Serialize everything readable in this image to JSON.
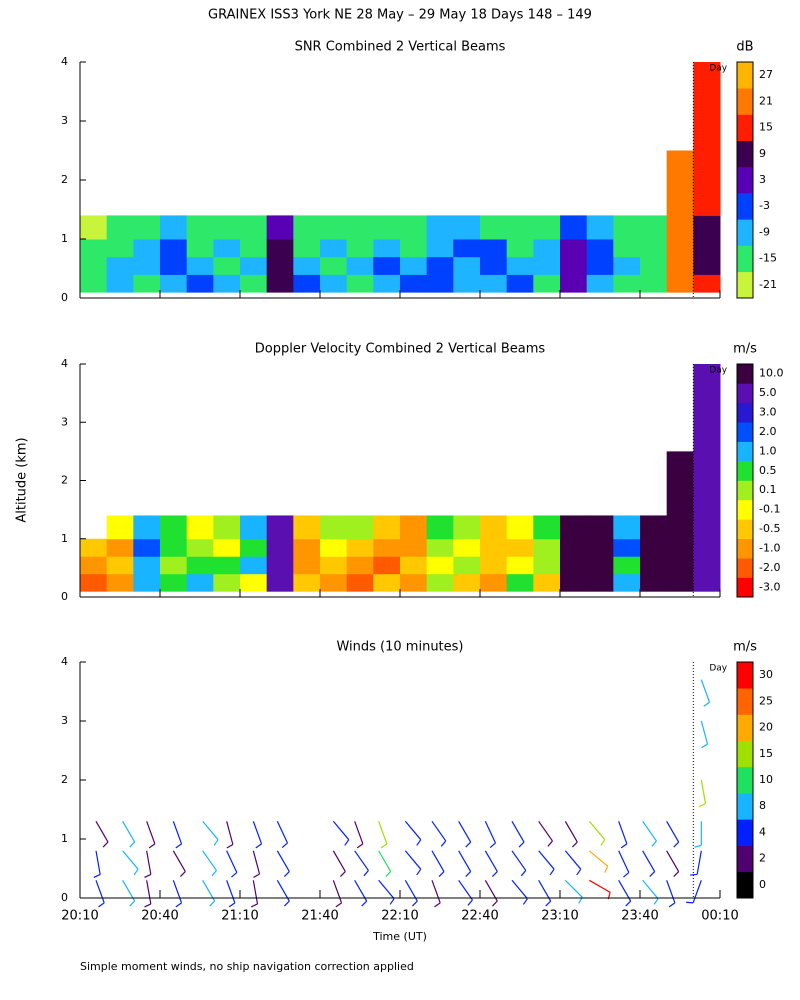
{
  "title": "GRAINEX ISS3 York NE  28 May – 29 May 18 Days 148 – 149",
  "y_label": "Altitude (km)",
  "note": "Simple moment winds, no ship navigation correction applied",
  "chart_data": [
    {
      "type": "heatmap",
      "title": "SNR Combined 2 Vertical Beams",
      "xlim": [
        1210,
        1450
      ],
      "xticks": [
        1210,
        1240,
        1270,
        1300,
        1330,
        1360,
        1390,
        1420,
        1450
      ],
      "ylim": [
        0,
        4
      ],
      "yticks": [
        0,
        1,
        2,
        3,
        4
      ],
      "day_marker": {
        "x": 1440,
        "label": "Day"
      },
      "time_edges": [
        1210,
        1220,
        1230,
        1240,
        1250,
        1260,
        1270,
        1280,
        1290,
        1300,
        1310,
        1320,
        1330,
        1340,
        1350,
        1360,
        1370,
        1380,
        1390,
        1400,
        1410,
        1420,
        1430,
        1440,
        1450
      ],
      "alt_edges": [
        0.1,
        0.4,
        0.7,
        1.0,
        1.4,
        2.5,
        4.0
      ],
      "values": [
        [
          -15,
          -9,
          -15,
          -9,
          -3,
          -9,
          -15,
          9,
          -3,
          -9,
          -15,
          -9,
          -3,
          -3,
          -9,
          -9,
          -3,
          -15,
          3,
          -9,
          -15,
          -15,
          21,
          15
        ],
        [
          -15,
          -9,
          -9,
          -3,
          -9,
          -15,
          -9,
          9,
          -9,
          -15,
          -9,
          -3,
          -9,
          -3,
          -9,
          -3,
          -9,
          -9,
          3,
          -3,
          -9,
          -15,
          21,
          9
        ],
        [
          -15,
          -15,
          -9,
          -3,
          -15,
          -9,
          -15,
          9,
          -15,
          -9,
          -15,
          -9,
          -15,
          -9,
          -3,
          -3,
          -15,
          -9,
          3,
          -3,
          -15,
          -15,
          21,
          9
        ],
        [
          -21,
          -15,
          -15,
          -9,
          -15,
          -15,
          -15,
          3,
          -15,
          -15,
          -15,
          -15,
          -15,
          -9,
          -9,
          -15,
          -15,
          -15,
          -3,
          -9,
          -15,
          -15,
          21,
          9
        ],
        [
          null,
          null,
          null,
          null,
          null,
          null,
          null,
          null,
          null,
          null,
          null,
          null,
          null,
          null,
          null,
          null,
          null,
          null,
          null,
          null,
          null,
          null,
          21,
          15
        ],
        [
          null,
          null,
          null,
          null,
          null,
          null,
          null,
          null,
          null,
          null,
          null,
          null,
          null,
          null,
          null,
          null,
          null,
          null,
          null,
          null,
          null,
          null,
          null,
          15
        ]
      ],
      "colorbar": {
        "unit": "dB",
        "levels": [
          -21,
          -15,
          -9,
          -3,
          3,
          9,
          15,
          21,
          27
        ],
        "colors": [
          "#c8f53c",
          "#2ee86a",
          "#1eb4ff",
          "#0040ff",
          "#5a00b4",
          "#3c0050",
          "#ff1e00",
          "#ff7800",
          "#ffb400"
        ]
      }
    },
    {
      "type": "heatmap",
      "title": "Doppler Velocity Combined 2 Vertical Beams",
      "xlim": [
        1210,
        1450
      ],
      "xticks": [
        1210,
        1240,
        1270,
        1300,
        1330,
        1360,
        1390,
        1420,
        1450
      ],
      "ylim": [
        0,
        4
      ],
      "yticks": [
        0,
        1,
        2,
        3,
        4
      ],
      "day_marker": {
        "x": 1440,
        "label": "Day"
      },
      "time_edges": [
        1210,
        1220,
        1230,
        1240,
        1250,
        1260,
        1270,
        1280,
        1290,
        1300,
        1310,
        1320,
        1330,
        1340,
        1350,
        1360,
        1370,
        1380,
        1390,
        1400,
        1410,
        1420,
        1430,
        1440,
        1450
      ],
      "alt_edges": [
        0.1,
        0.4,
        0.7,
        1.0,
        1.4,
        2.5,
        4.0
      ],
      "values": [
        [
          -2,
          -1,
          1,
          0.5,
          1,
          0.1,
          -0.1,
          5,
          -0.5,
          -1,
          -2,
          -0.5,
          -1,
          0.1,
          -0.5,
          -1,
          0.5,
          -0.5,
          10,
          10,
          1,
          10,
          10,
          5
        ],
        [
          -1,
          -0.5,
          1,
          0.1,
          0.5,
          0.5,
          1,
          5,
          -1,
          -0.5,
          -1,
          -2,
          -0.5,
          -0.1,
          0.1,
          -0.5,
          -0.1,
          0.1,
          10,
          10,
          0.5,
          10,
          10,
          5
        ],
        [
          -0.5,
          -1,
          2,
          0.5,
          0.1,
          -0.1,
          0.5,
          5,
          -1,
          -0.1,
          -0.5,
          -1,
          -1,
          0.1,
          -0.1,
          -0.5,
          -0.5,
          0.1,
          10,
          10,
          2,
          10,
          10,
          5
        ],
        [
          null,
          -0.1,
          1,
          0.5,
          -0.1,
          0.1,
          1,
          5,
          -0.5,
          0.1,
          0.1,
          -0.5,
          -1,
          0.5,
          0.1,
          -0.5,
          -0.1,
          0.5,
          10,
          10,
          1,
          10,
          10,
          5
        ],
        [
          null,
          null,
          null,
          null,
          null,
          null,
          null,
          null,
          null,
          null,
          null,
          null,
          null,
          null,
          null,
          null,
          null,
          null,
          null,
          null,
          null,
          null,
          10,
          5
        ],
        [
          null,
          null,
          null,
          null,
          null,
          null,
          null,
          null,
          null,
          null,
          null,
          null,
          null,
          null,
          null,
          null,
          null,
          null,
          null,
          null,
          null,
          null,
          null,
          5
        ]
      ],
      "colorbar": {
        "unit": "m/s",
        "levels": [
          {
            "value": -3,
            "label": "-3.0"
          },
          {
            "value": -2,
            "label": "-2.0"
          },
          {
            "value": -1,
            "label": "-1.0"
          },
          -0.5,
          -0.1,
          0.1,
          0.5,
          {
            "value": 1,
            "label": "1.0"
          },
          {
            "value": 2,
            "label": "2.0"
          },
          {
            "value": 3,
            "label": "3.0"
          },
          {
            "value": 5,
            "label": "5.0"
          },
          {
            "value": 10,
            "label": "10.0"
          }
        ],
        "colors": [
          "#ff0000",
          "#ff5a00",
          "#ff9600",
          "#ffc800",
          "#ffff00",
          "#a0f020",
          "#20e030",
          "#18b4ff",
          "#0050ff",
          "#2818d0",
          "#5a10b0",
          "#3a0040"
        ]
      }
    },
    {
      "type": "wind",
      "title": "Winds (10 minutes)",
      "x_label": "Time (UT)",
      "xlim": [
        1210,
        1450
      ],
      "xticks": [
        {
          "value": 1210,
          "label": "20:10"
        },
        {
          "value": 1240,
          "label": "20:40"
        },
        {
          "value": 1270,
          "label": "21:10"
        },
        {
          "value": 1300,
          "label": "21:40"
        },
        {
          "value": 1330,
          "label": "22:10"
        },
        {
          "value": 1360,
          "label": "22:40"
        },
        {
          "value": 1390,
          "label": "23:10"
        },
        {
          "value": 1420,
          "label": "23:40"
        },
        {
          "value": 1450,
          "label": "00:10"
        }
      ],
      "ylim": [
        0,
        4
      ],
      "yticks": [
        0,
        1,
        2,
        3,
        4
      ],
      "day_marker": {
        "x": 1440,
        "label": "Day"
      },
      "profiles": [
        {
          "time": 1216,
          "altitude": [
            0.3,
            0.8,
            1.3
          ],
          "speed": [
            4,
            4,
            2
          ],
          "direction": [
            160,
            170,
            150
          ]
        },
        {
          "time": 1226,
          "altitude": [
            0.3,
            0.8,
            1.3
          ],
          "speed": [
            8,
            8,
            8
          ],
          "direction": [
            150,
            140,
            150
          ]
        },
        {
          "time": 1235,
          "altitude": [
            0.3,
            0.8,
            1.3
          ],
          "speed": [
            2,
            2,
            2
          ],
          "direction": [
            170,
            170,
            160
          ]
        },
        {
          "time": 1245,
          "altitude": [
            0.3,
            0.8,
            1.3
          ],
          "speed": [
            4,
            2,
            4
          ],
          "direction": [
            160,
            150,
            160
          ]
        },
        {
          "time": 1256,
          "altitude": [
            0.3,
            0.8,
            1.3
          ],
          "speed": [
            8,
            8,
            8
          ],
          "direction": [
            150,
            145,
            140
          ]
        },
        {
          "time": 1265,
          "altitude": [
            0.3,
            0.8,
            1.3
          ],
          "speed": [
            4,
            4,
            2
          ],
          "direction": [
            160,
            155,
            165
          ]
        },
        {
          "time": 1275,
          "altitude": [
            0.3,
            0.8,
            1.3
          ],
          "speed": [
            2,
            2,
            4
          ],
          "direction": [
            170,
            165,
            160
          ]
        },
        {
          "time": 1284,
          "altitude": [
            0.3,
            0.8,
            1.3
          ],
          "speed": [
            4,
            4,
            4
          ],
          "direction": [
            150,
            150,
            155
          ]
        },
        {
          "time": 1305,
          "altitude": [
            0.3,
            0.8,
            1.3
          ],
          "speed": [
            2,
            2,
            4
          ],
          "direction": [
            160,
            150,
            140
          ]
        },
        {
          "time": 1313,
          "altitude": [
            0.3,
            0.8,
            1.3
          ],
          "speed": [
            4,
            4,
            2
          ],
          "direction": [
            150,
            145,
            160
          ]
        },
        {
          "time": 1322,
          "altitude": [
            0.3,
            0.8,
            1.3
          ],
          "speed": [
            4,
            10,
            15
          ],
          "direction": [
            140,
            150,
            160
          ]
        },
        {
          "time": 1332,
          "altitude": [
            0.3,
            0.8,
            1.3
          ],
          "speed": [
            4,
            4,
            4
          ],
          "direction": [
            150,
            140,
            140
          ]
        },
        {
          "time": 1342,
          "altitude": [
            0.3,
            0.8,
            1.3
          ],
          "speed": [
            2,
            4,
            4
          ],
          "direction": [
            160,
            150,
            145
          ]
        },
        {
          "time": 1352,
          "altitude": [
            0.3,
            0.8,
            1.3
          ],
          "speed": [
            4,
            4,
            4
          ],
          "direction": [
            145,
            150,
            150
          ]
        },
        {
          "time": 1362,
          "altitude": [
            0.3,
            0.8,
            1.3
          ],
          "speed": [
            2,
            4,
            4
          ],
          "direction": [
            150,
            150,
            155
          ]
        },
        {
          "time": 1372,
          "altitude": [
            0.3,
            0.8,
            1.3
          ],
          "speed": [
            4,
            4,
            4
          ],
          "direction": [
            140,
            145,
            150
          ]
        },
        {
          "time": 1382,
          "altitude": [
            0.3,
            0.8,
            1.3
          ],
          "speed": [
            4,
            4,
            2
          ],
          "direction": [
            150,
            140,
            145
          ]
        },
        {
          "time": 1392,
          "altitude": [
            0.3,
            0.8,
            1.3
          ],
          "speed": [
            8,
            4,
            2
          ],
          "direction": [
            135,
            140,
            150
          ]
        },
        {
          "time": 1401,
          "altitude": [
            0.3,
            0.8,
            1.3
          ],
          "speed": [
            30,
            20,
            15
          ],
          "direction": [
            120,
            130,
            140
          ]
        },
        {
          "time": 1412,
          "altitude": [
            0.3,
            0.8,
            1.3
          ],
          "speed": [
            4,
            4,
            4
          ],
          "direction": [
            150,
            155,
            160
          ]
        },
        {
          "time": 1421,
          "altitude": [
            0.3,
            0.8,
            1.3
          ],
          "speed": [
            8,
            4,
            8
          ],
          "direction": [
            140,
            150,
            145
          ]
        },
        {
          "time": 1430,
          "altitude": [
            0.3,
            0.8,
            1.3
          ],
          "speed": [
            4,
            2,
            4
          ],
          "direction": [
            160,
            150,
            150
          ]
        },
        {
          "time": 1443,
          "altitude": [
            0.3,
            0.8,
            1.3,
            2.0,
            3.0,
            3.7
          ],
          "speed": [
            4,
            4,
            8,
            15,
            8,
            8
          ],
          "direction": [
            200,
            190,
            180,
            170,
            165,
            160
          ]
        }
      ],
      "colorbar": {
        "unit": "m/s",
        "levels": [
          0,
          2,
          4,
          8,
          10,
          15,
          20,
          25,
          30
        ],
        "colors": [
          "#000000",
          "#500070",
          "#0020ff",
          "#18b4ff",
          "#20e060",
          "#a0e000",
          "#ffaa00",
          "#ff6400",
          "#ff0000"
        ]
      }
    }
  ]
}
